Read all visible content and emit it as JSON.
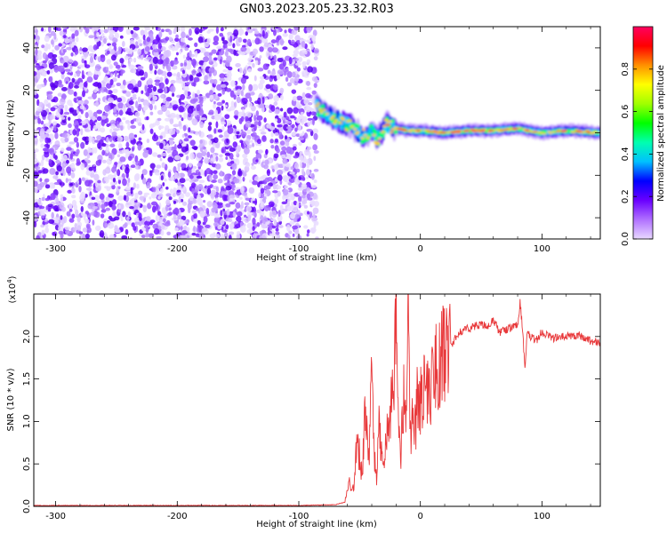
{
  "title": "GN03.2023.205.23.32.R03",
  "chart_data": [
    {
      "type": "heatmap",
      "xlabel": "Height of straight line (km)",
      "ylabel": "Frequency (Hz)",
      "xlim": [
        -318,
        148
      ],
      "ylim": [
        -50,
        50
      ],
      "xticks": [
        -300,
        -200,
        -100,
        0,
        100
      ],
      "yticks": [
        -40,
        -20,
        0,
        20,
        40
      ],
      "colorbar": {
        "label": "Normalized spectral amplitude",
        "range": [
          0,
          1
        ],
        "ticks": [
          0.0,
          0.2,
          0.4,
          0.6,
          0.8
        ],
        "tick_labels": [
          "0.0",
          "0.2",
          "0.4",
          "0.6",
          "0.8"
        ],
        "colors": [
          "#e8d8ff",
          "#b070ff",
          "#6a00ff",
          "#0000ff",
          "#00c0ff",
          "#00ffb0",
          "#00ff00",
          "#a0ff00",
          "#ffff00",
          "#ff9000",
          "#ff0000",
          "#ff0060"
        ]
      },
      "noise_region_x": [
        -318,
        -85
      ],
      "signal_ridge": {
        "x": [
          -85,
          -75,
          -65,
          -55,
          -48,
          -40,
          -35,
          -28,
          -20,
          -10,
          0,
          20,
          40,
          60,
          80,
          100,
          120,
          148
        ],
        "y": [
          12,
          8,
          5,
          3,
          -2,
          1,
          -3,
          4,
          2,
          1,
          1,
          0,
          1,
          1,
          2,
          0,
          1,
          0
        ]
      }
    },
    {
      "type": "line",
      "xlabel": "Height of straight line (km)",
      "ylabel": "SNR (10 * v/v)",
      "y_multiplier": "(x10^4)",
      "xlim": [
        -318,
        148
      ],
      "ylim": [
        0,
        2.5
      ],
      "xticks": [
        -300,
        -200,
        -100,
        0,
        100
      ],
      "yticks": [
        0.0,
        0.5,
        1.0,
        1.5,
        2.0
      ],
      "ytick_labels": [
        "0.0",
        "0.5",
        "1.0",
        "1.5",
        "2.0"
      ],
      "series": [
        {
          "color": "#e8383a",
          "x": [
            -318,
            -100,
            -70,
            -62,
            -58,
            -55,
            -52,
            -48,
            -45,
            -42,
            -40,
            -38,
            -36,
            -34,
            -32,
            -30,
            -28,
            -26,
            -24,
            -22,
            -20,
            -18,
            -16,
            -14,
            -12,
            -10,
            -8,
            -6,
            -4,
            -2,
            0,
            3,
            6,
            10,
            15,
            20,
            25,
            30,
            35,
            40,
            45,
            50,
            55,
            60,
            65,
            70,
            75,
            80,
            82,
            84,
            86,
            88,
            90,
            95,
            100,
            110,
            120,
            130,
            140,
            148
          ],
          "y": [
            0.01,
            0.01,
            0.02,
            0.05,
            0.3,
            0.2,
            0.8,
            0.4,
            1.2,
            0.5,
            1.8,
            0.6,
            0.3,
            0.9,
            0.7,
            0.5,
            1.0,
            0.8,
            1.4,
            1.0,
            2.35,
            0.9,
            0.6,
            1.3,
            1.0,
            2.3,
            0.8,
            1.2,
            0.9,
            1.4,
            1.25,
            1.4,
            1.3,
            1.5,
            1.7,
            1.8,
            1.9,
            2.0,
            2.08,
            2.1,
            2.12,
            2.15,
            2.1,
            2.2,
            2.05,
            2.08,
            2.1,
            2.15,
            2.4,
            2.1,
            1.6,
            2.05,
            2.0,
            1.95,
            2.05,
            1.98,
            2.0,
            2.02,
            1.95,
            1.92
          ]
        }
      ]
    }
  ]
}
